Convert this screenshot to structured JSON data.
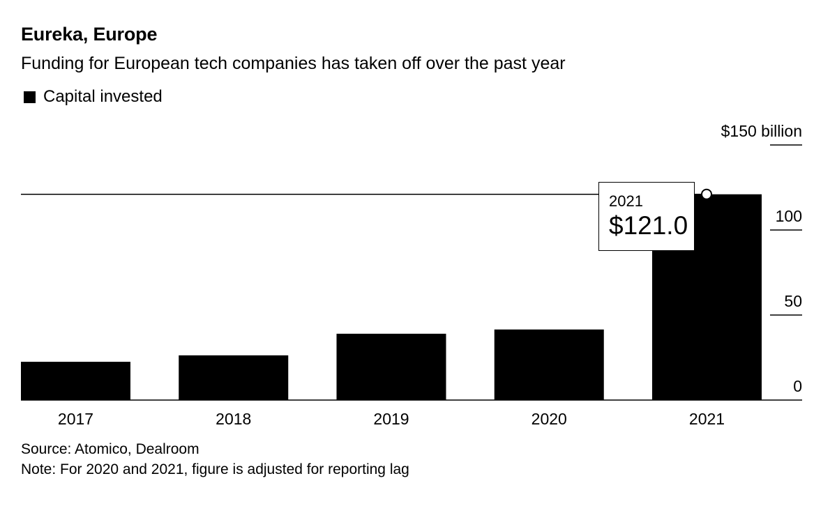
{
  "header": {
    "title": "Eureka, Europe",
    "subtitle": "Funding for European tech companies has taken off over the past year",
    "legend_label": "Capital invested"
  },
  "tooltip": {
    "year": "2021",
    "value": "$121.0"
  },
  "footer": {
    "source": "Source: Atomico, Dealroom",
    "note": "Note: For 2020 and 2021, figure is adjusted for reporting lag"
  },
  "colors": {
    "bar": "#000000",
    "background": "#ffffff"
  },
  "chart_data": {
    "type": "bar",
    "title": "Eureka, Europe",
    "subtitle": "Funding for European tech companies has taken off over the past year",
    "xlabel": "",
    "ylabel": "",
    "categories": [
      "2017",
      "2018",
      "2019",
      "2020",
      "2021"
    ],
    "series": [
      {
        "name": "Capital invested",
        "values": [
          22.5,
          26.3,
          39.0,
          41.5,
          121.0
        ]
      }
    ],
    "ylim": [
      0,
      150
    ],
    "yticks": [
      0,
      50,
      100,
      150
    ],
    "ytick_labels": [
      "0",
      "50",
      "100",
      "$150 billion"
    ],
    "highlight": {
      "category": "2021",
      "value": 121.0
    },
    "legend_position": "top-left",
    "grid": false
  }
}
